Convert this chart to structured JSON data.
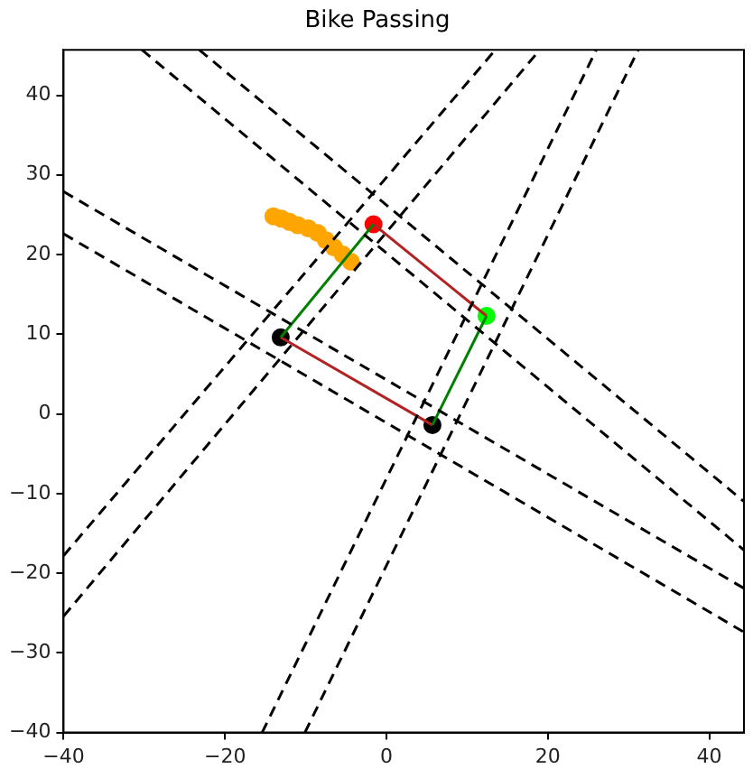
{
  "chart_data": {
    "type": "scatter",
    "title": "Bike Passing",
    "xlim": [
      -40,
      44.3
    ],
    "ylim": [
      -40,
      45.7
    ],
    "xticks": [
      {
        "value": -40,
        "label": "−40"
      },
      {
        "value": -20,
        "label": "−20"
      },
      0,
      20,
      40
    ],
    "yticks": [
      {
        "value": -40,
        "label": "−40"
      },
      {
        "value": -30,
        "label": "−30"
      },
      {
        "value": -20,
        "label": "−20"
      },
      {
        "value": -10,
        "label": "−10"
      },
      0,
      10,
      20,
      30,
      40
    ],
    "grid": false,
    "legend": false,
    "series": [
      {
        "type": "line",
        "color": "#000000",
        "line_style": "dashed",
        "marker": "none",
        "x": [
          -30.3,
          44.3
        ],
        "values": [
          45.7,
          -17.1
        ]
      },
      {
        "type": "line",
        "color": "#000000",
        "line_style": "dashed",
        "marker": "none",
        "x": [
          -23.2,
          44.3
        ],
        "values": [
          45.7,
          -11
        ]
      },
      {
        "type": "line",
        "color": "#000000",
        "line_style": "dashed",
        "marker": "none",
        "x": [
          -40,
          44.3
        ],
        "values": [
          27.9,
          -21.9
        ]
      },
      {
        "type": "line",
        "color": "#000000",
        "line_style": "dashed",
        "marker": "none",
        "x": [
          -40,
          44.3
        ],
        "values": [
          22.6,
          -27.4
        ]
      },
      {
        "type": "line",
        "color": "#000000",
        "line_style": "dashed",
        "marker": "none",
        "x": [
          -40,
          13.5
        ],
        "values": [
          -17.8,
          45.7
        ]
      },
      {
        "type": "line",
        "color": "#000000",
        "line_style": "dashed",
        "marker": "none",
        "x": [
          -40,
          19
        ],
        "values": [
          -25.4,
          45.7
        ]
      },
      {
        "type": "line",
        "color": "#000000",
        "line_style": "dashed",
        "marker": "none",
        "x": [
          -15.4,
          26
        ],
        "values": [
          -40,
          45.7
        ]
      },
      {
        "type": "line",
        "color": "#000000",
        "line_style": "dashed",
        "marker": "none",
        "x": [
          -10.1,
          31.2
        ],
        "values": [
          -40,
          45.7
        ]
      },
      {
        "type": "line",
        "color": "#008000",
        "line_style": "solid",
        "marker": "none",
        "x": [
          -13.1,
          -1.6
        ],
        "values": [
          9.6,
          23.8
        ]
      },
      {
        "type": "line",
        "color": "#008000",
        "line_style": "solid",
        "marker": "none",
        "x": [
          5.7,
          12.4
        ],
        "values": [
          -1.4,
          12.3
        ]
      },
      {
        "type": "line",
        "color": "#b22222",
        "line_style": "solid",
        "marker": "none",
        "x": [
          -1.6,
          12.4
        ],
        "values": [
          23.8,
          12.3
        ]
      },
      {
        "type": "line",
        "color": "#b22222",
        "line_style": "solid",
        "marker": "none",
        "x": [
          -13.1,
          5.7
        ],
        "values": [
          9.6,
          -1.4
        ]
      },
      {
        "type": "scatter",
        "color": "#ffa500",
        "marker": "circle",
        "x": [
          -14,
          -13,
          -12,
          -11,
          -9.7,
          -8.5,
          -7.5,
          -6.5,
          -5.4,
          -4.4
        ],
        "values": [
          24.8,
          24.5,
          24.1,
          23.7,
          23.3,
          22.7,
          21.8,
          20.9,
          20,
          19.1
        ]
      },
      {
        "type": "scatter",
        "color": "#ff0000",
        "marker": "circle",
        "x": [
          -1.6
        ],
        "values": [
          23.8
        ]
      },
      {
        "type": "scatter",
        "color": "#00ff00",
        "marker": "circle",
        "x": [
          12.4
        ],
        "values": [
          12.3
        ]
      },
      {
        "type": "scatter",
        "color": "#000000",
        "marker": "circle",
        "x": [
          -13.1,
          5.7
        ],
        "values": [
          9.6,
          -1.4
        ]
      }
    ]
  }
}
